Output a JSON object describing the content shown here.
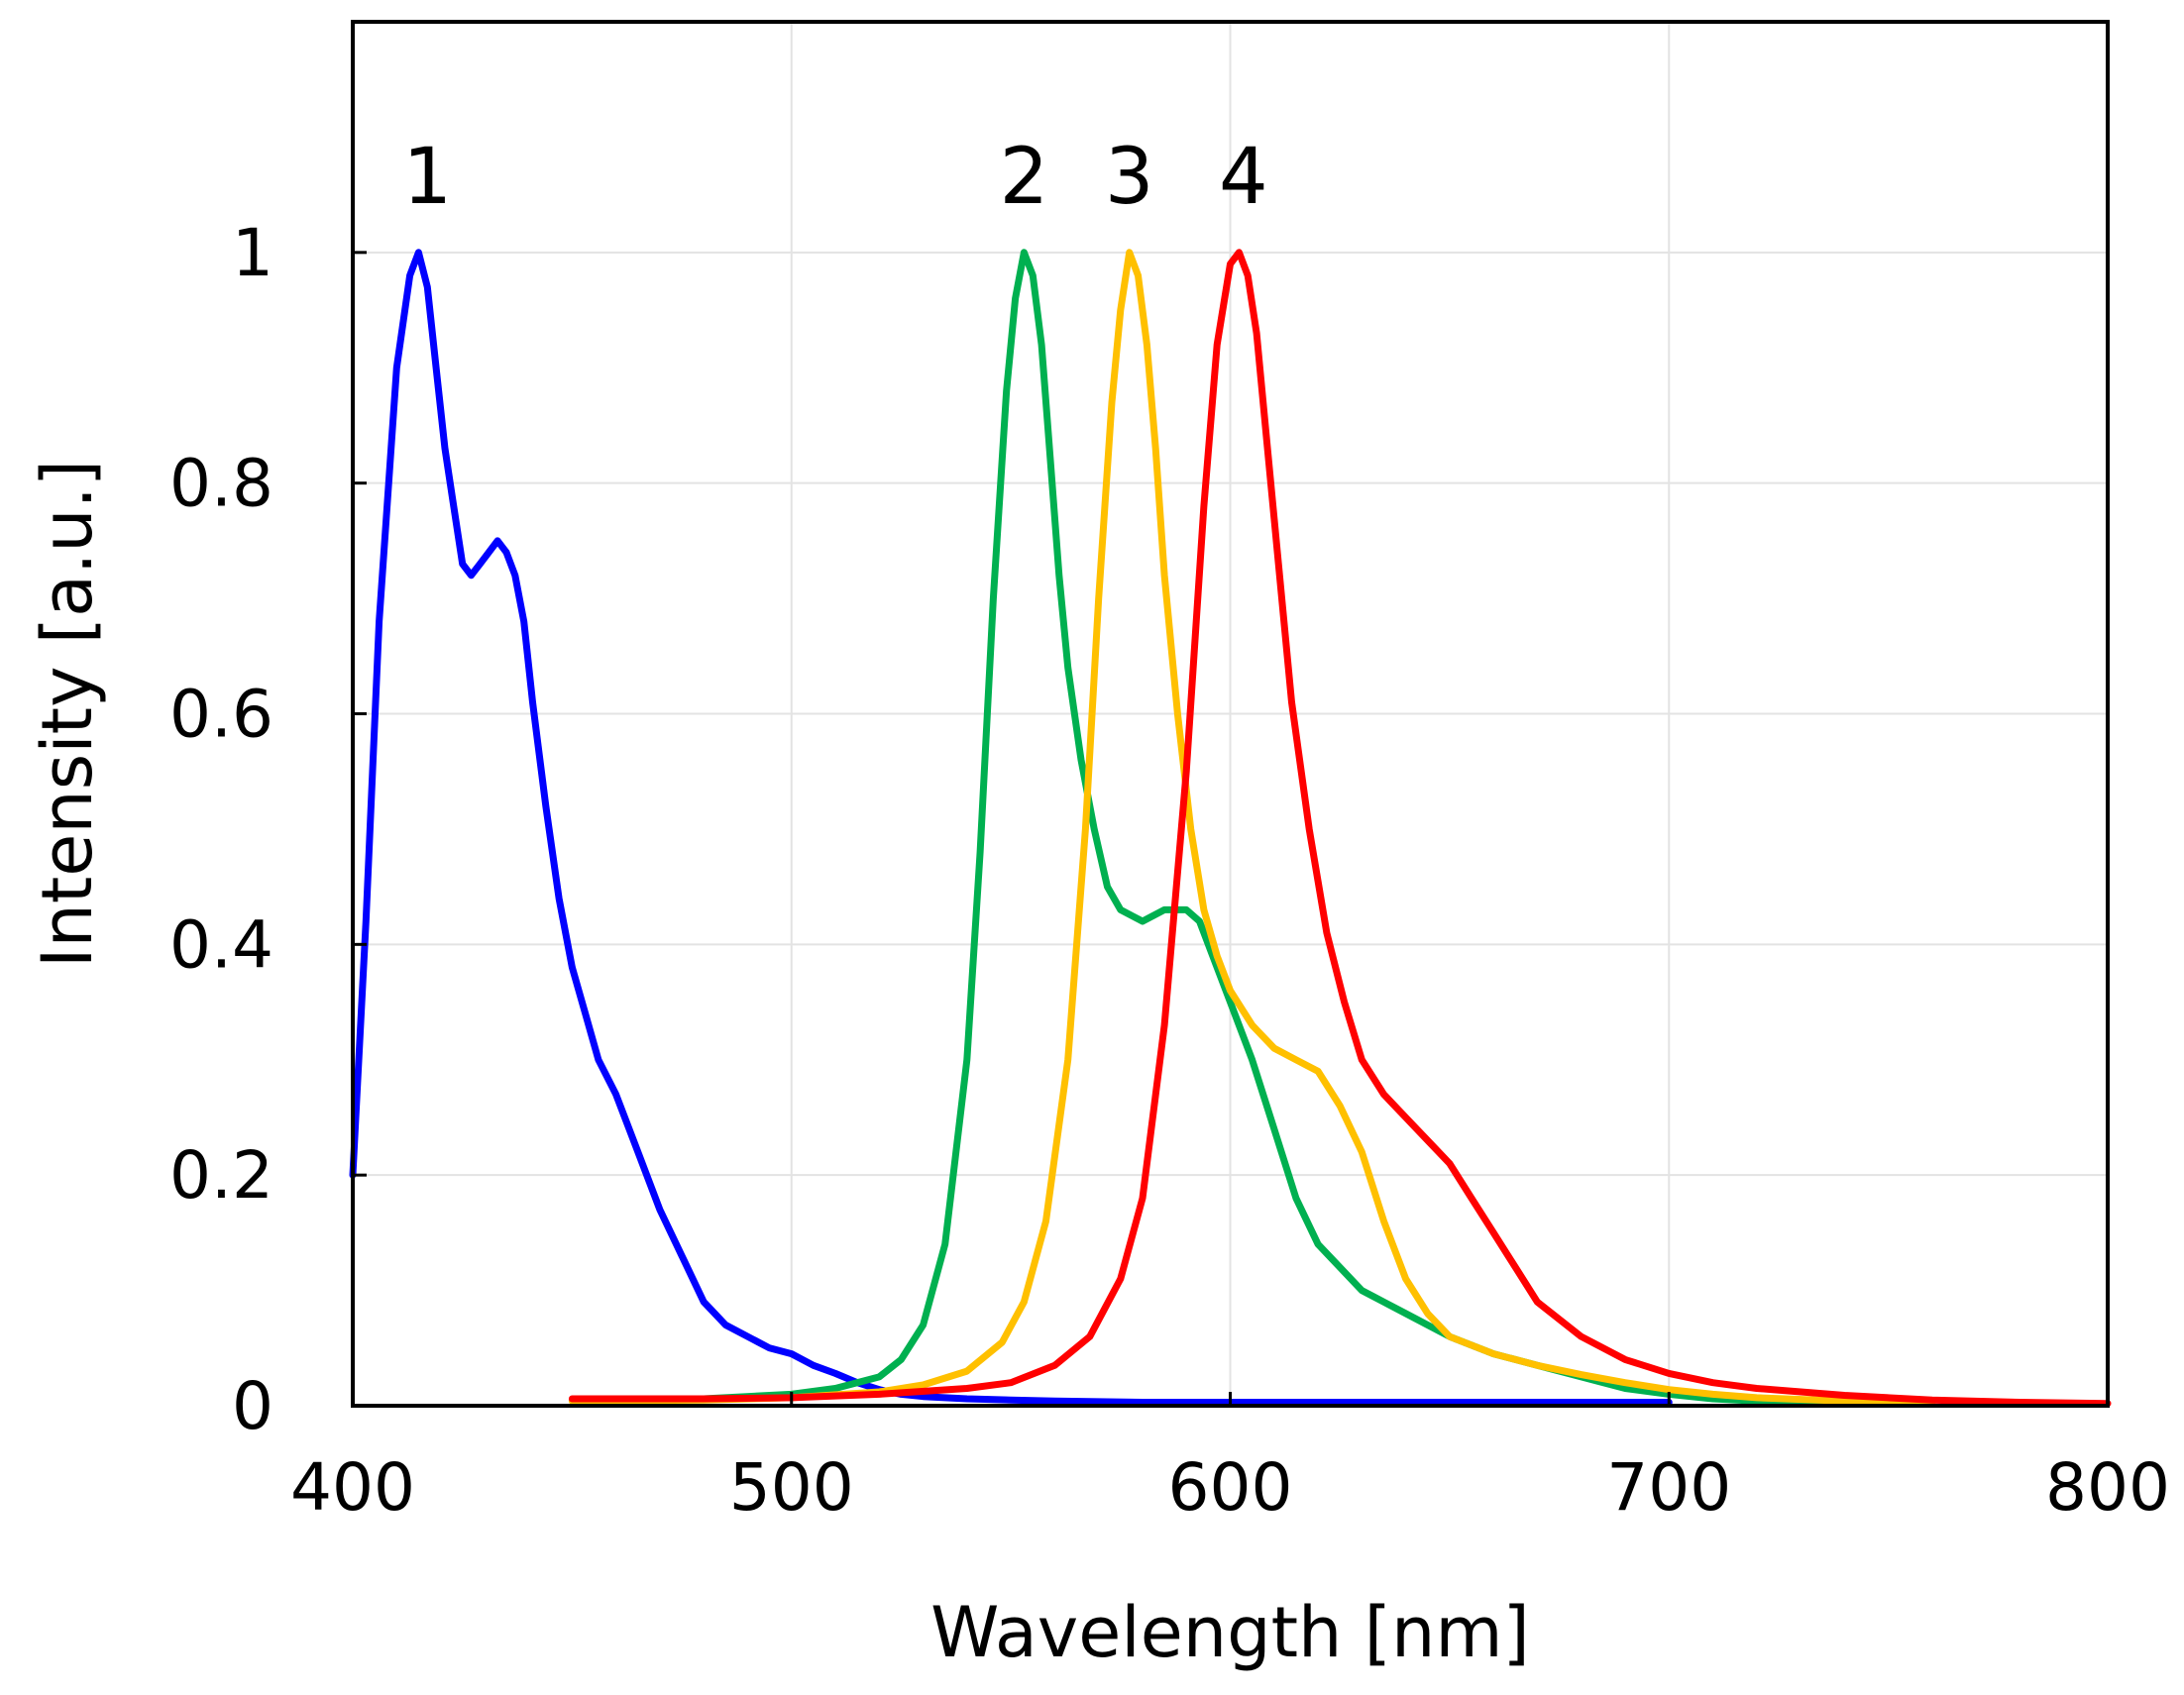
{
  "chart_data": {
    "type": "line",
    "title": "",
    "xlabel": "Wavelength [nm]",
    "ylabel": "Intensity [a.u.]",
    "xlim": [
      400,
      800
    ],
    "ylim": [
      0,
      1.2
    ],
    "xticks": [
      400,
      500,
      600,
      700,
      800
    ],
    "yticks": [
      0,
      0.2,
      0.4,
      0.6,
      0.8,
      1
    ],
    "xtick_labels": [
      "400",
      "500",
      "600",
      "700",
      "800"
    ],
    "ytick_labels": [
      "0",
      "0.2",
      "0.4",
      "0.6",
      "0.8",
      "1"
    ],
    "grid": true,
    "legend": "none",
    "series": [
      {
        "name": "1",
        "color": "#0000ff",
        "x": [
          400,
          403,
          406,
          410,
          413,
          415,
          417,
          419,
          421,
          423,
          425,
          427,
          429,
          431,
          433,
          435,
          437,
          439,
          441,
          444,
          447,
          450,
          453,
          456,
          460,
          465,
          470,
          475,
          480,
          485,
          490,
          495,
          500,
          505,
          510,
          515,
          520,
          525,
          530,
          540,
          550,
          560,
          580,
          600,
          650,
          700
        ],
        "values": [
          0.2,
          0.42,
          0.68,
          0.9,
          0.98,
          1.0,
          0.97,
          0.9,
          0.83,
          0.78,
          0.73,
          0.72,
          0.73,
          0.74,
          0.75,
          0.74,
          0.72,
          0.68,
          0.61,
          0.52,
          0.44,
          0.38,
          0.34,
          0.3,
          0.27,
          0.22,
          0.17,
          0.13,
          0.09,
          0.07,
          0.06,
          0.05,
          0.045,
          0.035,
          0.028,
          0.02,
          0.014,
          0.01,
          0.008,
          0.006,
          0.005,
          0.004,
          0.003,
          0.003,
          0.003,
          0.003
        ]
      },
      {
        "name": "2",
        "color": "#00b050",
        "x": [
          450,
          480,
          500,
          510,
          520,
          525,
          530,
          535,
          540,
          543,
          546,
          549,
          551,
          553,
          555,
          557,
          559,
          561,
          563,
          566,
          569,
          572,
          575,
          580,
          585,
          590,
          593,
          596,
          600,
          605,
          610,
          615,
          620,
          630,
          640,
          650,
          660,
          670,
          680,
          690,
          700,
          710,
          720,
          730,
          740
        ],
        "values": [
          0.005,
          0.006,
          0.01,
          0.015,
          0.025,
          0.04,
          0.07,
          0.14,
          0.3,
          0.48,
          0.7,
          0.88,
          0.96,
          1.0,
          0.98,
          0.92,
          0.82,
          0.72,
          0.64,
          0.56,
          0.5,
          0.45,
          0.43,
          0.42,
          0.43,
          0.43,
          0.42,
          0.39,
          0.35,
          0.3,
          0.24,
          0.18,
          0.14,
          0.1,
          0.08,
          0.06,
          0.045,
          0.035,
          0.025,
          0.015,
          0.01,
          0.006,
          0.004,
          0.003,
          0.002
        ]
      },
      {
        "name": "3",
        "color": "#ffc000",
        "x": [
          450,
          480,
          500,
          520,
          530,
          540,
          548,
          553,
          558,
          563,
          567,
          570,
          573,
          575,
          577,
          579,
          581,
          583,
          585,
          588,
          591,
          594,
          597,
          600,
          605,
          610,
          615,
          620,
          625,
          630,
          635,
          640,
          645,
          650,
          660,
          670,
          680,
          690,
          700,
          710,
          720,
          740,
          760
        ],
        "values": [
          0.004,
          0.005,
          0.007,
          0.012,
          0.018,
          0.03,
          0.055,
          0.09,
          0.16,
          0.3,
          0.5,
          0.7,
          0.87,
          0.95,
          1.0,
          0.98,
          0.92,
          0.83,
          0.72,
          0.6,
          0.5,
          0.43,
          0.39,
          0.36,
          0.33,
          0.31,
          0.3,
          0.29,
          0.26,
          0.22,
          0.16,
          0.11,
          0.08,
          0.06,
          0.045,
          0.035,
          0.027,
          0.02,
          0.014,
          0.01,
          0.007,
          0.004,
          0.002
        ]
      },
      {
        "name": "4",
        "color": "#ff0000",
        "x": [
          450,
          480,
          500,
          520,
          540,
          550,
          560,
          568,
          575,
          580,
          585,
          590,
          594,
          597,
          600,
          602,
          604,
          606,
          608,
          611,
          614,
          618,
          622,
          626,
          630,
          635,
          640,
          645,
          650,
          655,
          660,
          665,
          670,
          680,
          690,
          700,
          710,
          720,
          740,
          760,
          780,
          800
        ],
        "values": [
          0.006,
          0.006,
          0.007,
          0.01,
          0.015,
          0.02,
          0.035,
          0.06,
          0.11,
          0.18,
          0.33,
          0.55,
          0.78,
          0.92,
          0.99,
          1.0,
          0.98,
          0.93,
          0.85,
          0.73,
          0.61,
          0.5,
          0.41,
          0.35,
          0.3,
          0.27,
          0.25,
          0.23,
          0.21,
          0.18,
          0.15,
          0.12,
          0.09,
          0.06,
          0.04,
          0.028,
          0.02,
          0.015,
          0.009,
          0.005,
          0.003,
          0.002
        ]
      }
    ],
    "annotations": [
      {
        "text": "1",
        "x": 417,
        "y": 1.065
      },
      {
        "text": "2",
        "x": 553,
        "y": 1.065
      },
      {
        "text": "3",
        "x": 577,
        "y": 1.065
      },
      {
        "text": "4",
        "x": 603,
        "y": 1.065
      }
    ]
  }
}
